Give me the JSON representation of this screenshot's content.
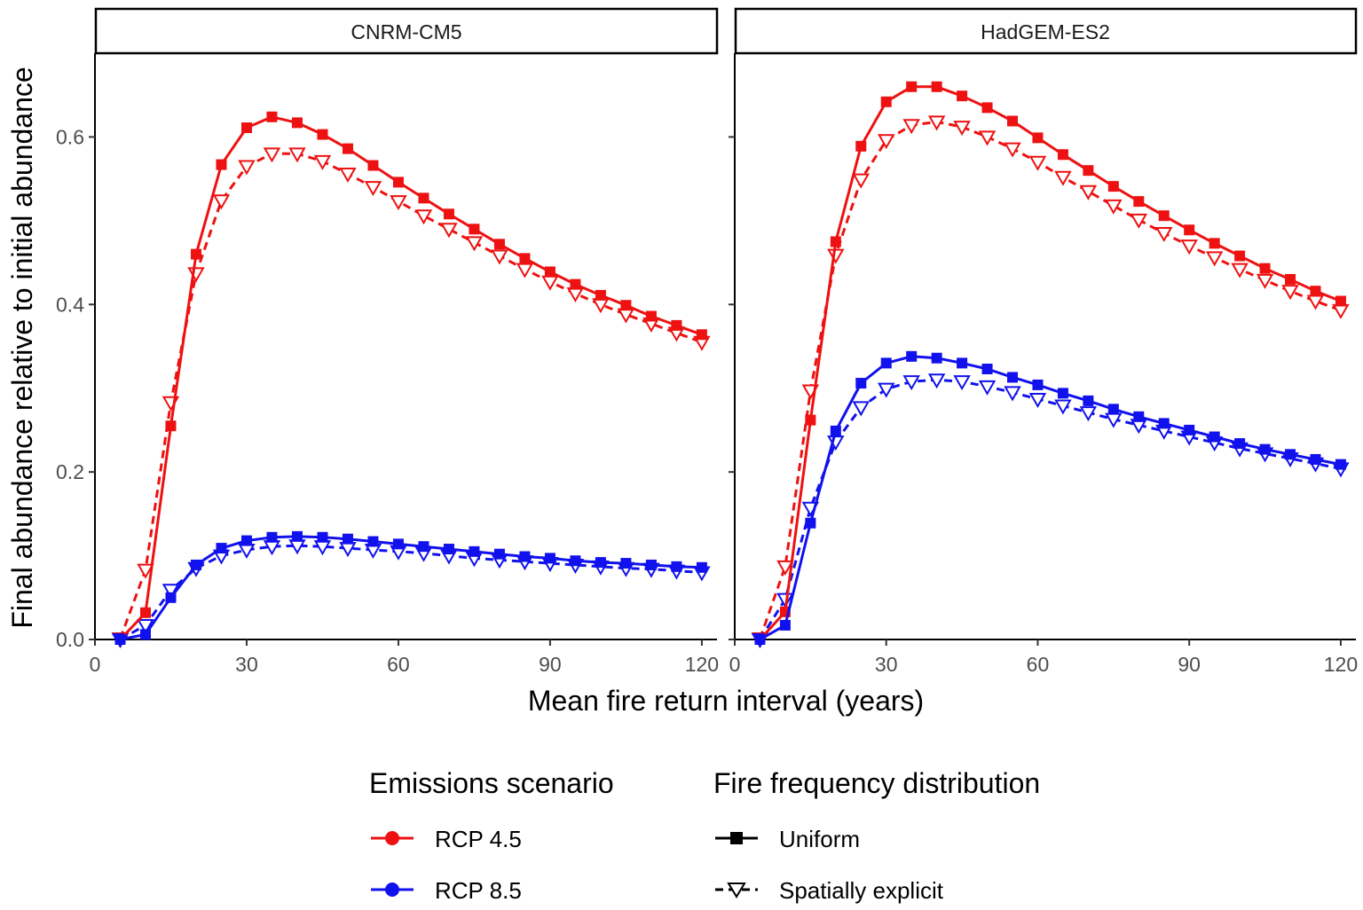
{
  "chart_data": {
    "type": "line",
    "xlabel": "Mean fire return interval (years)",
    "ylabel": "Final abundance relative to initial abundance",
    "xlim": [
      0,
      123
    ],
    "ylim": [
      0,
      0.7
    ],
    "x_ticks": [
      0,
      30,
      60,
      90,
      120
    ],
    "y_ticks": [
      0.0,
      0.2,
      0.4,
      0.6
    ],
    "x_tick_labels": [
      "0",
      "30",
      "60",
      "90",
      "120"
    ],
    "y_tick_labels": [
      "0.0",
      "0.2",
      "0.4",
      "0.6"
    ],
    "x": [
      5,
      10,
      15,
      20,
      25,
      30,
      35,
      40,
      45,
      50,
      55,
      60,
      65,
      70,
      75,
      80,
      85,
      90,
      95,
      100,
      105,
      110,
      115,
      120
    ],
    "colors": {
      "RCP 4.5": "#ee1111",
      "RCP 8.5": "#1111ee"
    },
    "panels": [
      {
        "title": "CNRM-CM5",
        "series": [
          {
            "name": "RCP 4.5 / Uniform",
            "scenario": "RCP 4.5",
            "distribution": "Uniform",
            "values": [
              0.0,
              0.032,
              0.255,
              0.46,
              0.567,
              0.611,
              0.624,
              0.617,
              0.603,
              0.586,
              0.566,
              0.546,
              0.527,
              0.508,
              0.49,
              0.472,
              0.455,
              0.439,
              0.424,
              0.411,
              0.399,
              0.386,
              0.375,
              0.364
            ]
          },
          {
            "name": "RCP 4.5 / Spatially explicit",
            "scenario": "RCP 4.5",
            "distribution": "Spatially explicit",
            "values": [
              0.001,
              0.083,
              0.283,
              0.437,
              0.524,
              0.565,
              0.58,
              0.58,
              0.571,
              0.556,
              0.54,
              0.523,
              0.506,
              0.49,
              0.474,
              0.458,
              0.442,
              0.427,
              0.413,
              0.4,
              0.388,
              0.377,
              0.366,
              0.355
            ]
          },
          {
            "name": "RCP 8.5 / Uniform",
            "scenario": "RCP 8.5",
            "distribution": "Uniform",
            "values": [
              0.0,
              0.006,
              0.05,
              0.089,
              0.109,
              0.118,
              0.122,
              0.123,
              0.122,
              0.12,
              0.117,
              0.114,
              0.111,
              0.108,
              0.105,
              0.102,
              0.099,
              0.097,
              0.094,
              0.092,
              0.091,
              0.089,
              0.087,
              0.086
            ]
          },
          {
            "name": "RCP 8.5 / Spatially explicit",
            "scenario": "RCP 8.5",
            "distribution": "Spatially explicit",
            "values": [
              0.0,
              0.017,
              0.059,
              0.085,
              0.1,
              0.107,
              0.111,
              0.112,
              0.111,
              0.109,
              0.107,
              0.105,
              0.103,
              0.1,
              0.097,
              0.095,
              0.093,
              0.091,
              0.089,
              0.087,
              0.085,
              0.084,
              0.082,
              0.08
            ]
          }
        ]
      },
      {
        "title": "HadGEM-ES2",
        "series": [
          {
            "name": "RCP 4.5 / Uniform",
            "scenario": "RCP 4.5",
            "distribution": "Uniform",
            "values": [
              0.0,
              0.033,
              0.262,
              0.475,
              0.589,
              0.642,
              0.66,
              0.66,
              0.649,
              0.635,
              0.619,
              0.599,
              0.579,
              0.56,
              0.541,
              0.523,
              0.506,
              0.489,
              0.473,
              0.458,
              0.443,
              0.43,
              0.416,
              0.404
            ]
          },
          {
            "name": "RCP 4.5 / Spatially explicit",
            "scenario": "RCP 4.5",
            "distribution": "Spatially explicit",
            "values": [
              0.001,
              0.087,
              0.297,
              0.459,
              0.549,
              0.596,
              0.614,
              0.618,
              0.612,
              0.6,
              0.586,
              0.57,
              0.552,
              0.535,
              0.518,
              0.501,
              0.485,
              0.47,
              0.456,
              0.442,
              0.429,
              0.416,
              0.404,
              0.393
            ]
          },
          {
            "name": "RCP 8.5 / Uniform",
            "scenario": "RCP 8.5",
            "distribution": "Uniform",
            "values": [
              0.0,
              0.017,
              0.139,
              0.249,
              0.306,
              0.33,
              0.338,
              0.336,
              0.33,
              0.323,
              0.313,
              0.304,
              0.294,
              0.285,
              0.275,
              0.266,
              0.258,
              0.25,
              0.242,
              0.234,
              0.227,
              0.221,
              0.215,
              0.209
            ]
          },
          {
            "name": "RCP 8.5 / Spatially explicit",
            "scenario": "RCP 8.5",
            "distribution": "Spatially explicit",
            "values": [
              0.0,
              0.048,
              0.157,
              0.236,
              0.277,
              0.299,
              0.308,
              0.31,
              0.308,
              0.302,
              0.295,
              0.287,
              0.279,
              0.271,
              0.263,
              0.256,
              0.249,
              0.242,
              0.235,
              0.228,
              0.222,
              0.216,
              0.21,
              0.204
            ]
          }
        ]
      }
    ],
    "legend": {
      "placement": "bottom",
      "scenario_title": "Emissions scenario",
      "scenario_items": [
        "RCP 4.5",
        "RCP 8.5"
      ],
      "distribution_title": "Fire frequency distribution",
      "distribution_items": [
        "Uniform",
        "Spatially explicit"
      ]
    }
  }
}
